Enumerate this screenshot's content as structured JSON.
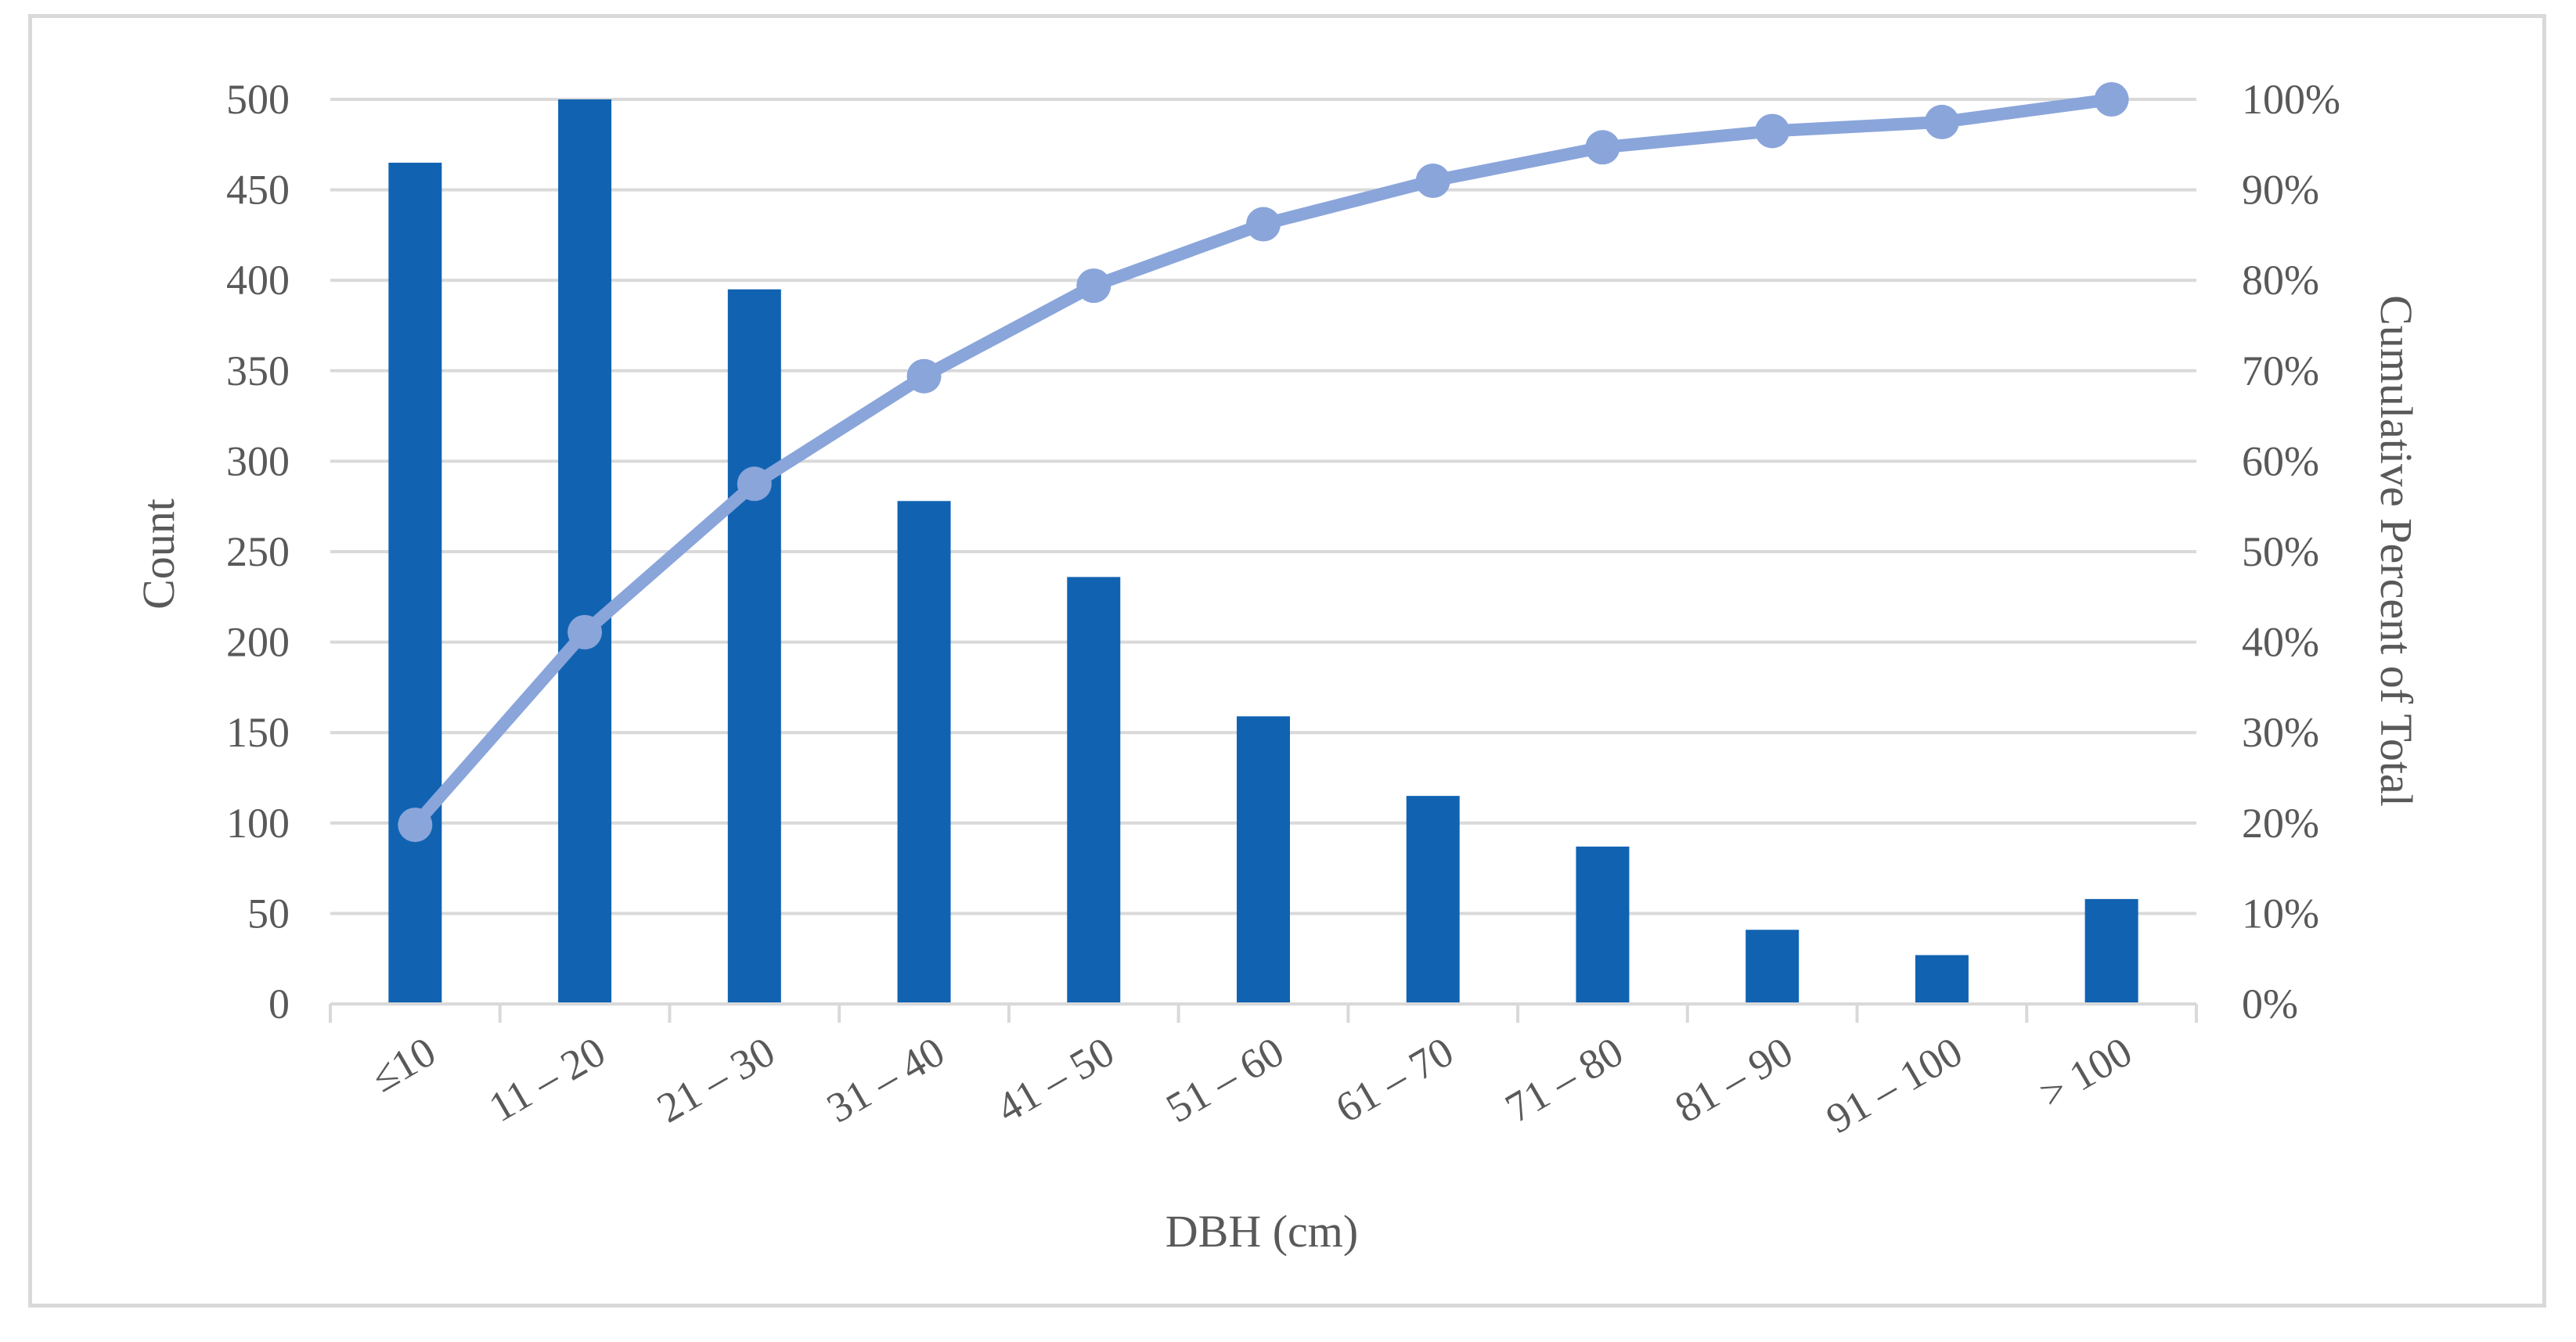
{
  "chart_data": {
    "type": "bar",
    "categories": [
      "≤10",
      "11 – 20",
      "21 – 30",
      "31 – 40",
      "41 – 50",
      "51 – 60",
      "61 – 70",
      "71 – 80",
      "81 – 90",
      "91 – 100",
      "> 100"
    ],
    "series": [
      {
        "type": "bar",
        "axis": "left",
        "values": [
          465,
          500,
          395,
          278,
          236,
          159,
          115,
          87,
          41,
          27,
          58
        ],
        "color": "#1163b2"
      },
      {
        "type": "line",
        "axis": "right",
        "values": [
          19.8,
          41.1,
          57.5,
          69.4,
          79.4,
          86.2,
          91.0,
          94.7,
          96.5,
          97.5,
          100
        ],
        "color": "#8aa5da"
      }
    ],
    "xlabel": "DBH (cm)",
    "ylabel": "Count",
    "ylabel_right": "Cumulative Percent of Total",
    "ylim": [
      0,
      500
    ],
    "ylim_right": [
      0,
      100
    ],
    "yticks": [
      "0",
      "50",
      "100",
      "150",
      "200",
      "250",
      "300",
      "350",
      "400",
      "450",
      "500"
    ],
    "yticks_right": [
      "0%",
      "10%",
      "20%",
      "30%",
      "40%",
      "50%",
      "60%",
      "70%",
      "80%",
      "90%",
      "100%"
    ],
    "grid": true,
    "legend": "none"
  }
}
